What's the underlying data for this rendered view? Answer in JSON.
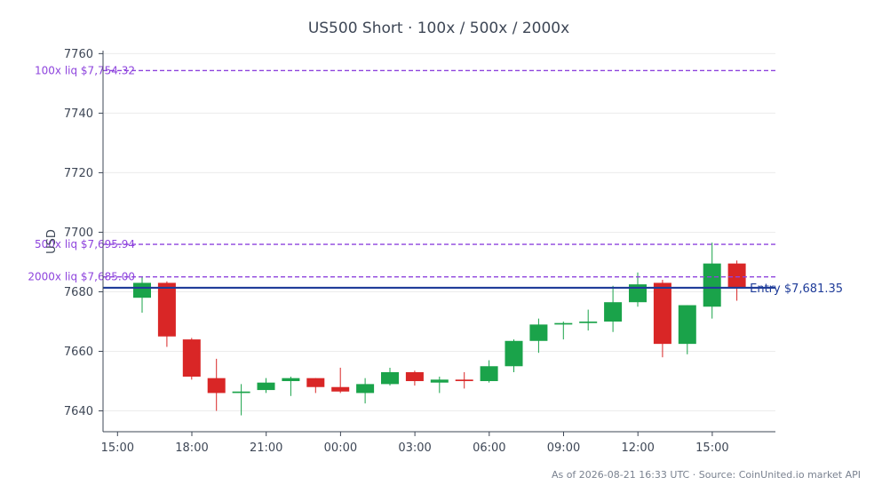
{
  "chart_data": {
    "type": "candlestick",
    "title": "US500 Short · 100x / 500x / 2000x",
    "ylabel": "USD",
    "xlabel": "",
    "ylim": [
      7633,
      7761
    ],
    "yticks": [
      7640,
      7660,
      7680,
      7700,
      7720,
      7740,
      7760
    ],
    "xticks": [
      "15:00",
      "18:00",
      "21:00",
      "00:00",
      "03:00",
      "06:00",
      "09:00",
      "12:00",
      "15:00"
    ],
    "grid": "horizontal",
    "candles": [
      {
        "o": 7678.0,
        "h": 7685.0,
        "l": 7673.0,
        "c": 7683.0
      },
      {
        "o": 7683.0,
        "h": 7683.5,
        "l": 7661.5,
        "c": 7665.0
      },
      {
        "o": 7664.0,
        "h": 7664.5,
        "l": 7650.5,
        "c": 7651.5
      },
      {
        "o": 7651.0,
        "h": 7657.5,
        "l": 7640.0,
        "c": 7646.0
      },
      {
        "o": 7646.0,
        "h": 7649.0,
        "l": 7638.5,
        "c": 7646.5
      },
      {
        "o": 7647.0,
        "h": 7651.0,
        "l": 7646.0,
        "c": 7649.5
      },
      {
        "o": 7650.0,
        "h": 7651.5,
        "l": 7645.0,
        "c": 7651.0
      },
      {
        "o": 7651.0,
        "h": 7651.0,
        "l": 7646.0,
        "c": 7648.0
      },
      {
        "o": 7648.0,
        "h": 7654.5,
        "l": 7646.0,
        "c": 7646.5
      },
      {
        "o": 7646.0,
        "h": 7651.0,
        "l": 7642.5,
        "c": 7649.0
      },
      {
        "o": 7649.0,
        "h": 7654.5,
        "l": 7648.5,
        "c": 7653.0
      },
      {
        "o": 7653.0,
        "h": 7653.5,
        "l": 7648.5,
        "c": 7650.0
      },
      {
        "o": 7649.5,
        "h": 7651.5,
        "l": 7646.0,
        "c": 7650.5
      },
      {
        "o": 7650.5,
        "h": 7653.0,
        "l": 7647.5,
        "c": 7650.0
      },
      {
        "o": 7650.0,
        "h": 7657.0,
        "l": 7649.5,
        "c": 7655.0
      },
      {
        "o": 7655.0,
        "h": 7664.0,
        "l": 7653.0,
        "c": 7663.5
      },
      {
        "o": 7663.5,
        "h": 7671.0,
        "l": 7659.5,
        "c": 7669.0
      },
      {
        "o": 7669.0,
        "h": 7670.0,
        "l": 7664.0,
        "c": 7669.5
      },
      {
        "o": 7669.5,
        "h": 7674.0,
        "l": 7667.0,
        "c": 7670.0
      },
      {
        "o": 7670.0,
        "h": 7682.0,
        "l": 7666.5,
        "c": 7676.5
      },
      {
        "o": 7676.5,
        "h": 7686.5,
        "l": 7675.0,
        "c": 7682.5
      },
      {
        "o": 7683.0,
        "h": 7684.0,
        "l": 7658.0,
        "c": 7662.5
      },
      {
        "o": 7662.5,
        "h": 7675.5,
        "l": 7659.0,
        "c": 7675.5
      },
      {
        "o": 7675.0,
        "h": 7696.5,
        "l": 7671.0,
        "c": 7689.5
      },
      {
        "o": 7689.5,
        "h": 7690.5,
        "l": 7677.0,
        "c": 7681.5
      }
    ],
    "reference_lines": [
      {
        "label": "100x liq $7,754.32",
        "value": 7754.32,
        "color": "#8e44dd",
        "style": "dashed"
      },
      {
        "label": "500x liq $7,695.94",
        "value": 7695.94,
        "color": "#8e44dd",
        "style": "dashed"
      },
      {
        "label": "2000x liq $7,685.00",
        "value": 7685.0,
        "color": "#8e44dd",
        "style": "dashed"
      },
      {
        "label": "Entry $7,681.35",
        "value": 7681.35,
        "color": "#1f3c99",
        "style": "solid"
      }
    ],
    "colors": {
      "up": "#1aa34a",
      "down": "#d92626"
    }
  },
  "footer": "As of 2026-08-21 16:33 UTC · Source: CoinUnited.io market API"
}
